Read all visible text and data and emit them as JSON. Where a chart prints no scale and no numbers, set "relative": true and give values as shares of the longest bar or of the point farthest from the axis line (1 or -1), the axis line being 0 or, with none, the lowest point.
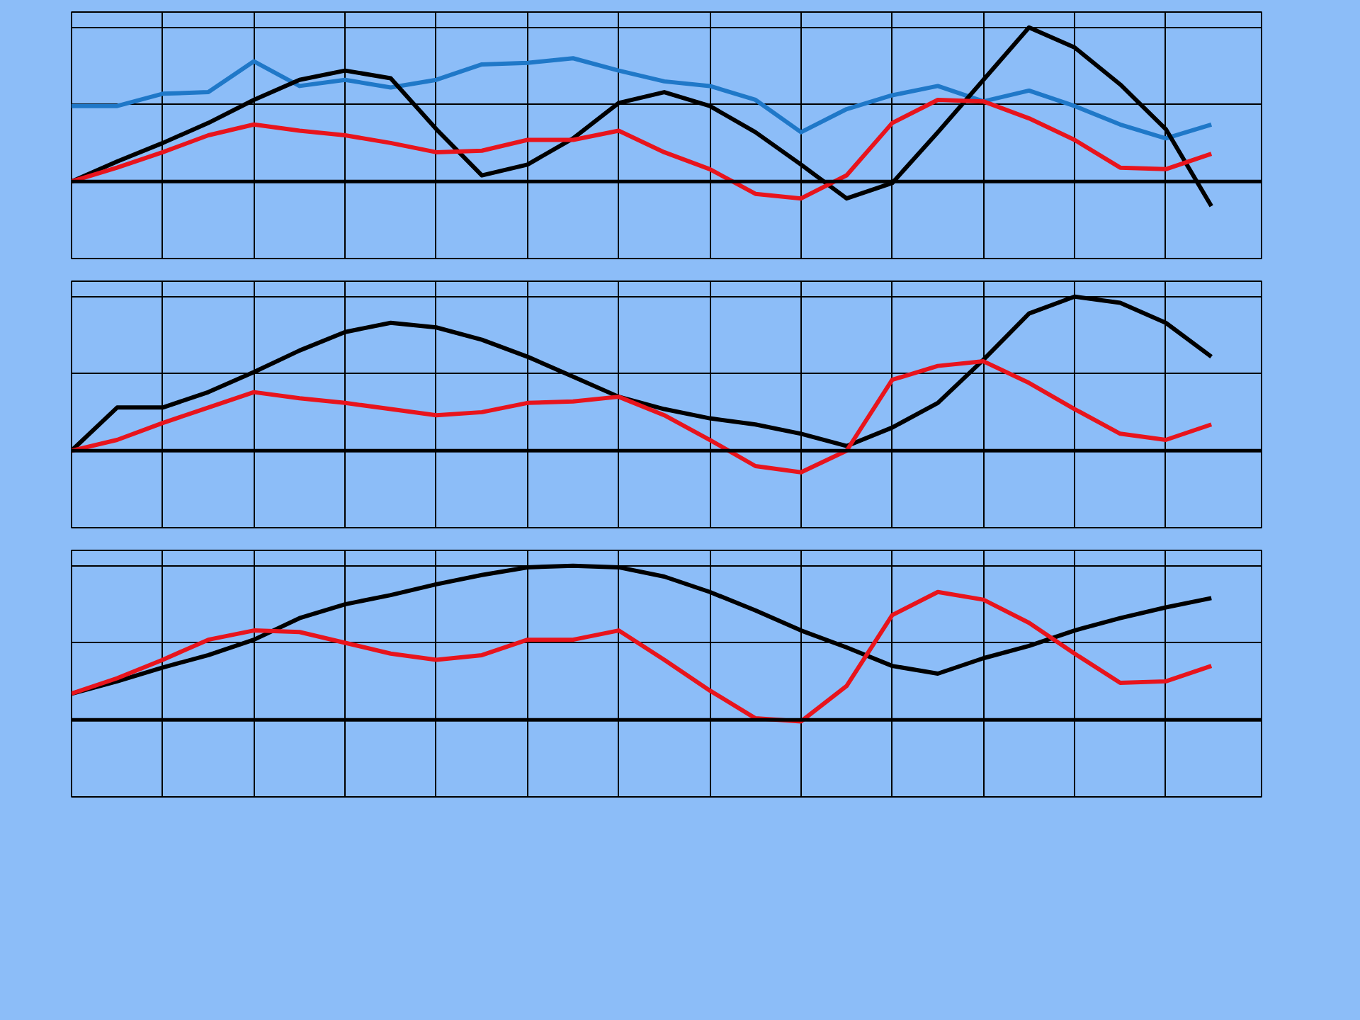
{
  "chart_data": [
    {
      "type": "line",
      "relative": true,
      "grid": true,
      "categories": [
        null,
        null,
        null,
        null,
        null,
        null,
        null,
        null,
        null,
        null,
        null,
        null,
        null,
        null,
        null,
        null,
        null,
        null,
        null,
        null,
        null,
        null,
        null,
        null,
        null,
        null
      ],
      "series": [
        {
          "color": "#1f78c8",
          "values": [
            0.49,
            0.49,
            0.57,
            0.58,
            0.78,
            0.62,
            0.66,
            0.61,
            0.66,
            0.76,
            0.77,
            0.8,
            0.72,
            0.65,
            0.62,
            0.53,
            0.32,
            0.47,
            0.56,
            0.62,
            0.52,
            0.59,
            0.49,
            0.37,
            0.28,
            0.37
          ]
        },
        {
          "color": "#000000",
          "values": [
            0,
            0.13,
            0.25,
            0.38,
            0.53,
            0.66,
            0.72,
            0.67,
            0.34,
            0.04,
            0.11,
            0.28,
            0.51,
            0.58,
            0.49,
            0.32,
            0.11,
            -0.11,
            -0.01,
            0.32,
            0.66,
            1.0,
            0.87,
            0.63,
            0.34,
            -0.16
          ]
        },
        {
          "color": "#e8141c",
          "values": [
            0,
            0.09,
            0.19,
            0.3,
            0.37,
            0.33,
            0.3,
            0.25,
            0.19,
            0.2,
            0.27,
            0.27,
            0.33,
            0.19,
            0.08,
            -0.08,
            -0.11,
            0.04,
            0.38,
            0.53,
            0.52,
            0.41,
            0.27,
            0.09,
            0.08,
            0.18
          ]
        }
      ]
    },
    {
      "type": "line",
      "relative": true,
      "grid": true,
      "categories": [
        null,
        null,
        null,
        null,
        null,
        null,
        null,
        null,
        null,
        null,
        null,
        null,
        null,
        null,
        null,
        null,
        null,
        null,
        null,
        null,
        null,
        null,
        null,
        null,
        null,
        null
      ],
      "series": [
        {
          "color": "#000000",
          "values": [
            0,
            0.28,
            0.28,
            0.38,
            0.51,
            0.65,
            0.77,
            0.83,
            0.8,
            0.72,
            0.61,
            0.48,
            0.35,
            0.27,
            0.21,
            0.17,
            0.11,
            0.03,
            0.15,
            0.31,
            0.59,
            0.89,
            1.0,
            0.96,
            0.83,
            0.61
          ]
        },
        {
          "color": "#e8141c",
          "values": [
            0,
            0.07,
            0.18,
            0.28,
            0.38,
            0.34,
            0.31,
            0.27,
            0.23,
            0.25,
            0.31,
            0.32,
            0.35,
            0.23,
            0.07,
            -0.1,
            -0.14,
            0,
            0.46,
            0.55,
            0.58,
            0.44,
            0.27,
            0.11,
            0.07,
            0.17
          ]
        }
      ]
    },
    {
      "type": "line",
      "relative": true,
      "grid": true,
      "categories": [
        null,
        null,
        null,
        null,
        null,
        null,
        null,
        null,
        null,
        null,
        null,
        null,
        null,
        null,
        null,
        null,
        null,
        null,
        null,
        null,
        null,
        null,
        null,
        null,
        null,
        null
      ],
      "series": [
        {
          "color": "#000000",
          "values": [
            0.17,
            0.25,
            0.34,
            0.42,
            0.52,
            0.66,
            0.75,
            0.81,
            0.88,
            0.94,
            0.99,
            1.0,
            0.99,
            0.93,
            0.83,
            0.71,
            0.58,
            0.47,
            0.35,
            0.3,
            0.4,
            0.48,
            0.58,
            0.66,
            0.73,
            0.79
          ]
        },
        {
          "color": "#e8141c",
          "values": [
            0.17,
            0.27,
            0.39,
            0.52,
            0.58,
            0.57,
            0.5,
            0.43,
            0.39,
            0.42,
            0.52,
            0.52,
            0.58,
            0.39,
            0.19,
            0.01,
            -0.01,
            0.22,
            0.68,
            0.83,
            0.78,
            0.63,
            0.43,
            0.24,
            0.25,
            0.35
          ]
        }
      ]
    }
  ]
}
